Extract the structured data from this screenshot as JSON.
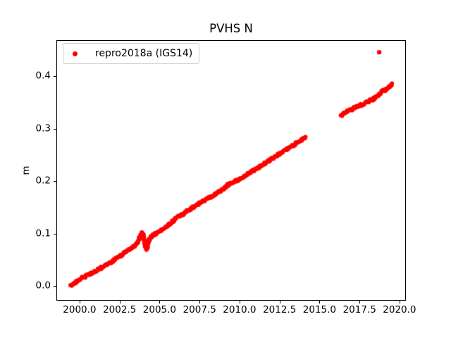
{
  "figure": {
    "title": "PVHS N",
    "background_color": "#ffffff",
    "frame_color": "#000000"
  },
  "legend": {
    "label": "repro2018a (IGS14)",
    "marker_color": "#ff0000",
    "position": "upper left",
    "border_color": "#cccccc"
  },
  "chart_data": {
    "type": "scatter",
    "title": "PVHS N",
    "xlabel": "",
    "ylabel": "m",
    "grid": false,
    "xlim": [
      1998.55,
      2020.4
    ],
    "ylim": [
      -0.0282,
      0.4685
    ],
    "xticks": [
      2000.0,
      2002.5,
      2005.0,
      2007.5,
      2010.0,
      2012.5,
      2015.0,
      2017.5,
      2020.0
    ],
    "xtick_labels": [
      "2000.0",
      "2002.5",
      "2005.0",
      "2007.5",
      "2010.0",
      "2012.5",
      "2015.0",
      "2017.5",
      "2020.0"
    ],
    "yticks": [
      0.0,
      0.1,
      0.2,
      0.3,
      0.4
    ],
    "ytick_labels": [
      "0.0",
      "0.1",
      "0.2",
      "0.3",
      "0.4"
    ],
    "legend": {
      "label": "repro2018a (IGS14)",
      "position": "upper left"
    },
    "series": [
      {
        "name": "repro2018a (IGS14)",
        "color": "#ff0000",
        "marker": "point",
        "trend_segments": [
          [
            [
              1999.45,
              0.0
            ],
            [
              1999.8,
              0.0077
            ],
            [
              2000.2,
              0.0159
            ],
            [
              2000.7,
              0.023
            ],
            [
              2001.2,
              0.0316
            ],
            [
              2001.7,
              0.0402
            ],
            [
              2002.2,
              0.0497
            ],
            [
              2002.7,
              0.0603
            ],
            [
              2003.2,
              0.0709
            ],
            [
              2003.6,
              0.0816
            ],
            [
              2003.9,
              0.1013
            ],
            [
              2004.0,
              0.0973
            ],
            [
              2004.1,
              0.0772
            ],
            [
              2004.2,
              0.0701
            ],
            [
              2004.35,
              0.088
            ],
            [
              2004.55,
              0.0958
            ],
            [
              2005.0,
              0.1034
            ],
            [
              2005.5,
              0.115
            ],
            [
              2006.0,
              0.128
            ],
            [
              2006.5,
              0.1375
            ],
            [
              2007.0,
              0.148
            ],
            [
              2007.5,
              0.158
            ],
            [
              2008.0,
              0.1665
            ],
            [
              2008.5,
              0.175
            ],
            [
              2009.0,
              0.1842
            ],
            [
              2009.25,
              0.193
            ],
            [
              2009.5,
              0.1948
            ],
            [
              2010.0,
              0.2033
            ],
            [
              2010.5,
              0.2139
            ],
            [
              2011.0,
              0.2215
            ],
            [
              2011.5,
              0.2321
            ],
            [
              2012.0,
              0.2427
            ],
            [
              2012.5,
              0.2513
            ],
            [
              2013.0,
              0.2619
            ],
            [
              2013.5,
              0.2705
            ],
            [
              2014.1,
              0.283
            ]
          ],
          [
            [
              2016.35,
              0.3245
            ],
            [
              2016.5,
              0.3295
            ],
            [
              2016.75,
              0.3325
            ],
            [
              2017.0,
              0.336
            ],
            [
              2017.3,
              0.341
            ],
            [
              2017.7,
              0.3465
            ],
            [
              2018.1,
              0.352
            ],
            [
              2018.45,
              0.3575
            ],
            [
              2018.7,
              0.3635
            ],
            [
              2018.9,
              0.371
            ],
            [
              2019.1,
              0.3735
            ],
            [
              2019.35,
              0.3785
            ],
            [
              2019.55,
              0.384
            ]
          ]
        ],
        "outliers": [
          [
            2018.73,
            0.4455
          ]
        ]
      }
    ]
  }
}
